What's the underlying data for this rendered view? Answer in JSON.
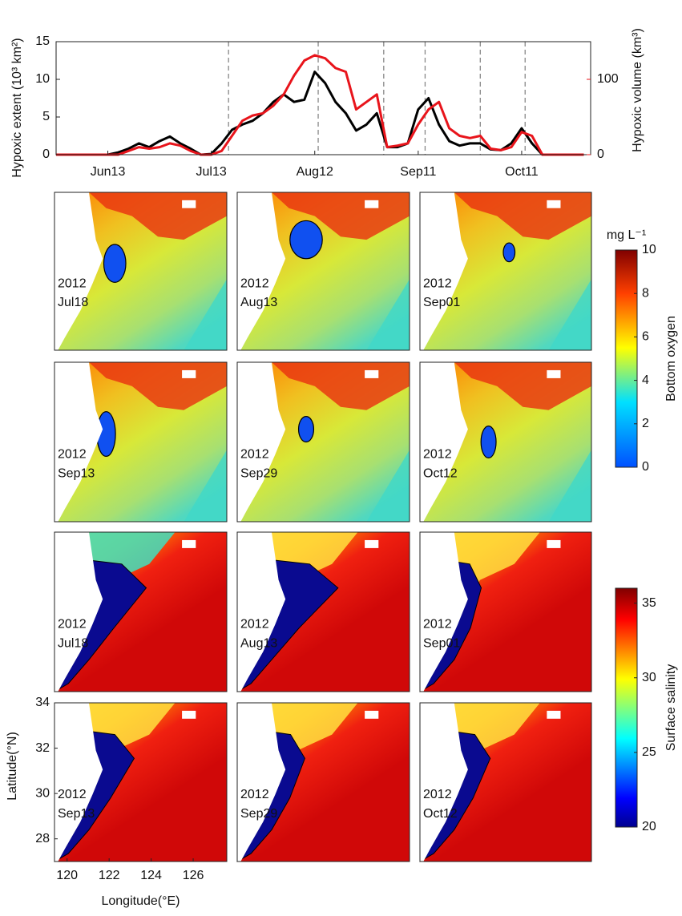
{
  "chart_data": [
    {
      "type": "line",
      "ylabel": "Hypoxic extent (10³ km²)",
      "y2label": "Hypoxic volume (km³)",
      "x": [
        150,
        153,
        156,
        159,
        162,
        165,
        168,
        171,
        174,
        177,
        180,
        183,
        186,
        189,
        192,
        195,
        198,
        201,
        204,
        207,
        210,
        213,
        216,
        219,
        222,
        225,
        228,
        231,
        234,
        237,
        240,
        243,
        246,
        249,
        252,
        255,
        258,
        261,
        264,
        267,
        270,
        273,
        276,
        279,
        282,
        285,
        288,
        291,
        294,
        297,
        300,
        303
      ],
      "xlim": [
        150,
        305
      ],
      "xticks": [
        {
          "value": 165,
          "label": "Jun13"
        },
        {
          "value": 195,
          "label": "Jul13"
        },
        {
          "value": 225,
          "label": "Aug12"
        },
        {
          "value": 255,
          "label": "Sep11"
        },
        {
          "value": 285,
          "label": "Oct11"
        }
      ],
      "ylim": [
        0,
        15
      ],
      "yticks": [
        0,
        5,
        10,
        15
      ],
      "y2lim": [
        0,
        150
      ],
      "y2ticks": [
        0,
        100
      ],
      "marked_x": [
        200,
        226,
        245,
        257,
        273,
        286
      ],
      "series": [
        {
          "color": "#000000",
          "values": [
            0,
            0,
            0,
            0,
            0,
            0,
            0.3,
            0.8,
            1.5,
            1,
            1.8,
            2.4,
            1.5,
            0.8,
            0,
            0.1,
            1.5,
            3.3,
            4,
            4.5,
            5.5,
            7,
            8,
            7,
            7.3,
            11,
            9.5,
            7,
            5.5,
            3.2,
            4,
            5.5,
            1,
            1,
            1.5,
            6,
            7.5,
            4,
            1.8,
            1.2,
            1.5,
            1.5,
            0.7,
            0.6,
            1.5,
            3.5,
            1.5,
            0,
            0,
            0,
            0,
            0
          ]
        },
        {
          "color": "#e8141b",
          "axis": "y2",
          "values": [
            0,
            0,
            0,
            0,
            0,
            0,
            0,
            5,
            10,
            8,
            10,
            15,
            12,
            5,
            0,
            0,
            5,
            25,
            45,
            52,
            55,
            65,
            80,
            105,
            125,
            132,
            128,
            115,
            110,
            60,
            70,
            80,
            10,
            12,
            15,
            40,
            60,
            70,
            35,
            25,
            22,
            25,
            8,
            6,
            10,
            30,
            25,
            0,
            0,
            0,
            0,
            0
          ]
        }
      ]
    },
    {
      "type": "colorbar",
      "title": "Bottom oxygen",
      "unit": "mg L⁻¹",
      "ylim": [
        0,
        10
      ],
      "yticks": [
        0,
        2,
        4,
        6,
        8,
        10
      ]
    },
    {
      "type": "colorbar",
      "title": "Surface salinity",
      "ylim": [
        20,
        36
      ],
      "yticks": [
        20,
        25,
        30,
        35
      ]
    },
    {
      "type": "map",
      "ylabel": "Latitude(°N)",
      "xlabel": "Longitude(°E)",
      "xlim": [
        119.4,
        127.6
      ],
      "ylim": [
        27,
        34
      ],
      "xticks": [
        120,
        122,
        124,
        126
      ],
      "yticks": [
        28,
        30,
        32,
        34
      ]
    }
  ],
  "map_panels": [
    {
      "year": "2012",
      "date": "Jul18"
    },
    {
      "year": "2012",
      "date": "Aug13"
    },
    {
      "year": "2012",
      "date": "Sep01"
    },
    {
      "year": "2012",
      "date": "Sep13"
    },
    {
      "year": "2012",
      "date": "Sep29"
    },
    {
      "year": "2012",
      "date": "Oct12"
    },
    {
      "year": "2012",
      "date": "Jul18"
    },
    {
      "year": "2012",
      "date": "Aug13"
    },
    {
      "year": "2012",
      "date": "Sep01"
    },
    {
      "year": "2012",
      "date": "Sep13"
    },
    {
      "year": "2012",
      "date": "Sep29"
    },
    {
      "year": "2012",
      "date": "Oct12"
    }
  ]
}
